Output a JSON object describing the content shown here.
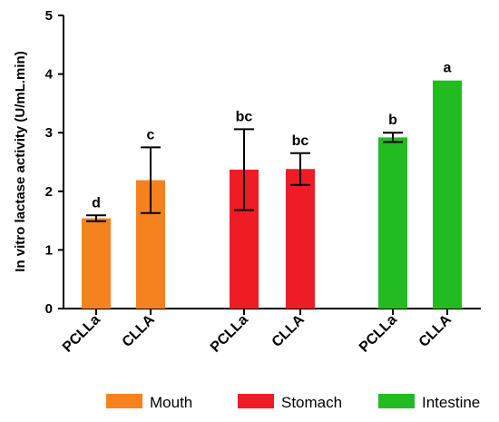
{
  "chart_data": {
    "type": "bar",
    "ylabel": "In vitro lactase activity (U/mL.min)",
    "ylim": [
      0,
      5
    ],
    "yticks": [
      0,
      1,
      2,
      3,
      4,
      5
    ],
    "grid": false,
    "legend_position": "bottom",
    "groups": [
      {
        "name": "Mouth",
        "color": "#F5821F",
        "bars": [
          {
            "category": "PCLLa",
            "value": 1.54,
            "error": 0.05,
            "label": "d"
          },
          {
            "category": "CLLA",
            "value": 2.19,
            "error": 0.56,
            "label": "c"
          }
        ]
      },
      {
        "name": "Stomach",
        "color": "#EE1C24",
        "bars": [
          {
            "category": "PCLLa",
            "value": 2.37,
            "error": 0.69,
            "label": "bc"
          },
          {
            "category": "CLLA",
            "value": 2.38,
            "error": 0.27,
            "label": "bc"
          }
        ]
      },
      {
        "name": "Intestine",
        "color": "#22BB22",
        "bars": [
          {
            "category": "PCLLa",
            "value": 2.92,
            "error": 0.08,
            "label": "b"
          },
          {
            "category": "CLLA",
            "value": 3.89,
            "error": 0,
            "label": "a"
          }
        ]
      }
    ]
  }
}
